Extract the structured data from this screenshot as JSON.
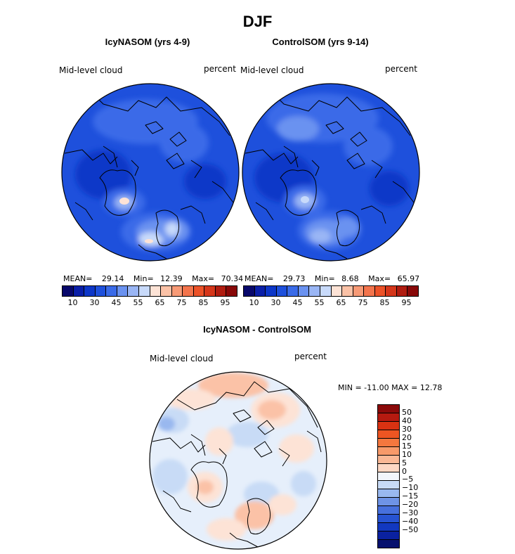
{
  "title": "DJF",
  "panels": [
    {
      "title": "IcyNASOM (yrs 4-9)",
      "var_label": "Mid-level cloud",
      "units": "percent",
      "stats": {
        "mean_label": "MEAN=",
        "mean": "29.14",
        "min_label": "Min=",
        "min": "12.39",
        "max_label": "Max=",
        "max": "70.34"
      }
    },
    {
      "title": "ControlSOM (yrs 9-14)",
      "var_label": "Mid-level cloud",
      "units": "percent",
      "stats": {
        "mean_label": "MEAN=",
        "mean": "29.73",
        "min_label": "Min=",
        "min": "8.68",
        "max_label": "Max=",
        "max": "65.97"
      }
    }
  ],
  "colorbar_top": {
    "colors": [
      "#08086b",
      "#0a1fa8",
      "#0d37c8",
      "#1e50dc",
      "#3a6be8",
      "#6a92f0",
      "#9ab6f5",
      "#c8dafa",
      "#fde3d6",
      "#fbc2a7",
      "#f79a76",
      "#f3744c",
      "#ec5228",
      "#d5361a",
      "#b01c10",
      "#880808"
    ],
    "ticks": [
      "10",
      "30",
      "45",
      "55",
      "65",
      "75",
      "85",
      "95"
    ]
  },
  "diff_panel": {
    "title": "IcyNASOM - ControlSOM",
    "var_label": "Mid-level cloud",
    "units": "percent",
    "minmax_text": "MIN = -11.00 MAX =  12.78",
    "colorbar": {
      "colors": [
        "#8b0a0a",
        "#b51a10",
        "#d93212",
        "#ee5522",
        "#f4773e",
        "#f79a6a",
        "#fab895",
        "#fdd8c4",
        "#f2f6fc",
        "#c8dbf6",
        "#99b8ef",
        "#6e93e6",
        "#4770dd",
        "#2753d2",
        "#1238c0",
        "#0a21a0",
        "#06106e"
      ],
      "ticks": [
        "50",
        "40",
        "30",
        "20",
        "15",
        "10",
        "5",
        "0",
        "−5",
        "−10",
        "−15",
        "−20",
        "−30",
        "−40",
        "−50"
      ]
    }
  }
}
